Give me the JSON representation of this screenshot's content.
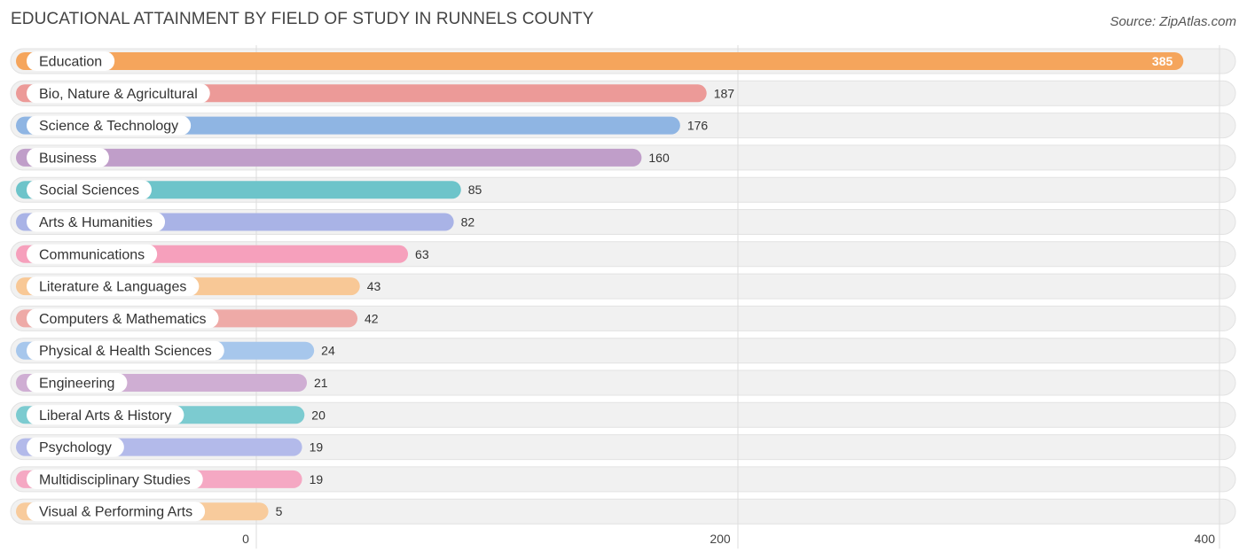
{
  "header": {
    "title": "EDUCATIONAL ATTAINMENT BY FIELD OF STUDY IN RUNNELS COUNTY",
    "source": "Source: ZipAtlas.com"
  },
  "chart_data": {
    "type": "bar",
    "orientation": "horizontal",
    "title": "EDUCATIONAL ATTAINMENT BY FIELD OF STUDY IN RUNNELS COUNTY",
    "xlabel": "",
    "ylabel": "",
    "xlim": [
      0,
      400
    ],
    "ticks": [
      0,
      200,
      400
    ],
    "grid": true,
    "categories": [
      "Education",
      "Bio, Nature & Agricultural",
      "Science & Technology",
      "Business",
      "Social Sciences",
      "Arts & Humanities",
      "Communications",
      "Literature & Languages",
      "Computers & Mathematics",
      "Physical & Health Sciences",
      "Engineering",
      "Liberal Arts & History",
      "Psychology",
      "Multidisciplinary Studies",
      "Visual & Performing Arts"
    ],
    "values": [
      385,
      187,
      176,
      160,
      85,
      82,
      63,
      43,
      42,
      24,
      21,
      20,
      19,
      19,
      5
    ],
    "colors": [
      "#f5a55c",
      "#ec9a98",
      "#8fb5e3",
      "#c09ec9",
      "#6dc4ca",
      "#a9b3e6",
      "#f6a0bc",
      "#f8c896",
      "#eeaaa7",
      "#a7c7ec",
      "#cfaed3",
      "#7ccbd0",
      "#b3baea",
      "#f5a8c3",
      "#f8cb9c"
    ]
  }
}
